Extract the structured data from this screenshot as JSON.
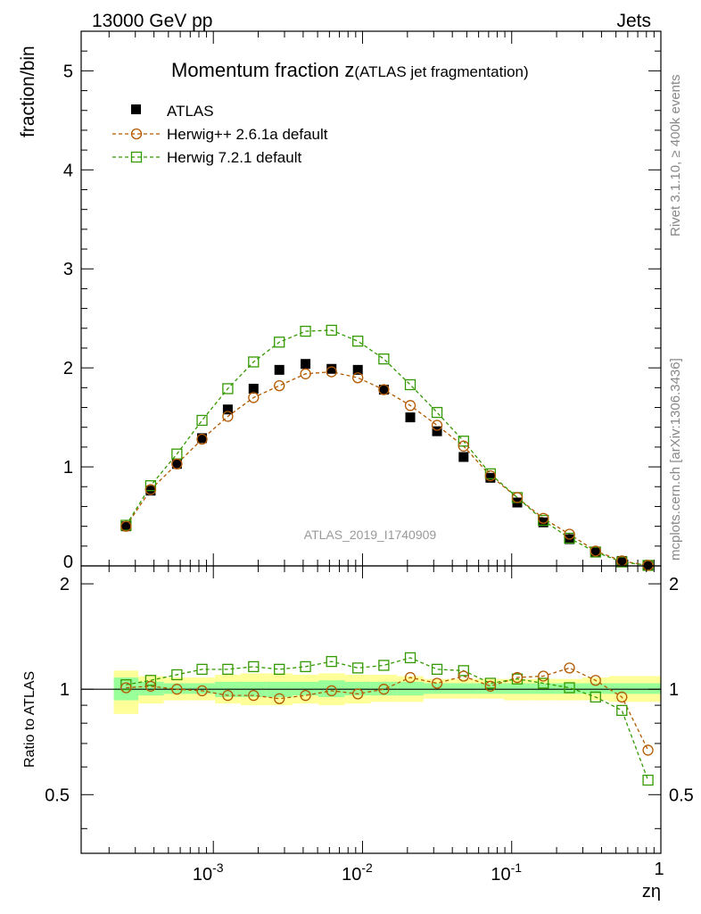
{
  "header": {
    "energy_label": "13000 GeV pp",
    "category_label": "Jets"
  },
  "side_labels": {
    "rivet": "Rivet 3.1.10, ≥ 400k events",
    "mcplots": "mcplots.cern.ch [arXiv:1306.3436]"
  },
  "chart_data": {
    "type": "scatter",
    "title_main": "Momentum fraction ",
    "title_z": "z",
    "title_sub": "(ATLAS jet fragmentation)",
    "ylabel": "fraction/bin",
    "ratio_ylabel": "Ratio to ATLAS",
    "xlabel": "zη",
    "watermark": "ATLAS_2019_I1740909",
    "x_scale": "log",
    "xlim": [
      0.00013,
      1
    ],
    "ylim": [
      0,
      5.4
    ],
    "ratio_ylim": [
      0.34,
      2.25
    ],
    "x_tick_labels": [
      "10",
      "-3",
      "10",
      "-2",
      "10",
      "-1",
      "1"
    ],
    "y_tick_labels": [
      "0",
      "1",
      "2",
      "3",
      "4",
      "5"
    ],
    "ratio_tick_labels": [
      "0.5",
      "1",
      "2"
    ],
    "x": [
      0.00026,
      0.00038,
      0.00057,
      0.00084,
      0.00125,
      0.00186,
      0.00277,
      0.00415,
      0.0062,
      0.0093,
      0.0139,
      0.0209,
      0.0316,
      0.0476,
      0.072,
      0.109,
      0.163,
      0.244,
      0.365,
      0.548,
      0.82
    ],
    "series": [
      {
        "name": "ATLAS",
        "marker": "filled-square",
        "color": "#000000",
        "values": [
          0.4,
          0.76,
          1.03,
          1.29,
          1.58,
          1.79,
          1.98,
          2.04,
          1.99,
          1.98,
          1.78,
          1.5,
          1.36,
          1.1,
          0.89,
          0.64,
          0.44,
          0.27,
          0.14,
          0.05,
          0.008
        ]
      },
      {
        "name": "Herwig++ 2.6.1a default",
        "marker": "open-circle",
        "color": "#b35900",
        "values": [
          0.4,
          0.77,
          1.03,
          1.28,
          1.51,
          1.7,
          1.82,
          1.94,
          1.96,
          1.9,
          1.78,
          1.62,
          1.42,
          1.21,
          0.91,
          0.69,
          0.48,
          0.32,
          0.15,
          0.05,
          0.005
        ],
        "ratio": [
          1.01,
          1.02,
          1.0,
          0.99,
          0.96,
          0.96,
          0.94,
          0.96,
          0.99,
          0.97,
          1.0,
          1.08,
          1.04,
          1.09,
          1.02,
          1.08,
          1.09,
          1.15,
          1.06,
          0.95,
          0.67
        ]
      },
      {
        "name": "Herwig 7.2.1 default",
        "marker": "open-square",
        "color": "#339900",
        "values": [
          0.41,
          0.81,
          1.13,
          1.47,
          1.79,
          2.06,
          2.26,
          2.37,
          2.38,
          2.27,
          2.09,
          1.83,
          1.55,
          1.26,
          0.93,
          0.69,
          0.46,
          0.28,
          0.14,
          0.04,
          0.005
        ],
        "ratio": [
          1.03,
          1.06,
          1.1,
          1.14,
          1.14,
          1.16,
          1.14,
          1.16,
          1.2,
          1.15,
          1.17,
          1.23,
          1.14,
          1.13,
          1.04,
          1.07,
          1.04,
          1.01,
          0.95,
          0.87,
          0.55
        ]
      }
    ],
    "ratio_band_green": [
      [
        0.93,
        1.08
      ],
      [
        0.96,
        1.05
      ],
      [
        0.97,
        1.04
      ],
      [
        0.97,
        1.04
      ],
      [
        0.95,
        1.05
      ],
      [
        0.95,
        1.05
      ],
      [
        0.95,
        1.05
      ],
      [
        0.96,
        1.05
      ],
      [
        0.95,
        1.06
      ],
      [
        0.96,
        1.05
      ],
      [
        0.96,
        1.05
      ],
      [
        0.96,
        1.05
      ],
      [
        0.97,
        1.04
      ],
      [
        0.97,
        1.04
      ],
      [
        0.97,
        1.04
      ],
      [
        0.97,
        1.04
      ],
      [
        0.97,
        1.04
      ],
      [
        0.97,
        1.04
      ],
      [
        0.97,
        1.04
      ],
      [
        0.97,
        1.04
      ],
      [
        0.97,
        1.04
      ]
    ],
    "ratio_band_yellow": [
      [
        0.85,
        1.13
      ],
      [
        0.91,
        1.09
      ],
      [
        0.93,
        1.08
      ],
      [
        0.93,
        1.08
      ],
      [
        0.91,
        1.1
      ],
      [
        0.9,
        1.11
      ],
      [
        0.9,
        1.11
      ],
      [
        0.91,
        1.1
      ],
      [
        0.9,
        1.11
      ],
      [
        0.91,
        1.1
      ],
      [
        0.92,
        1.1
      ],
      [
        0.92,
        1.09
      ],
      [
        0.94,
        1.07
      ],
      [
        0.94,
        1.07
      ],
      [
        0.94,
        1.07
      ],
      [
        0.93,
        1.07
      ],
      [
        0.93,
        1.07
      ],
      [
        0.93,
        1.07
      ],
      [
        0.93,
        1.08
      ],
      [
        0.92,
        1.09
      ],
      [
        0.92,
        1.09
      ]
    ]
  }
}
